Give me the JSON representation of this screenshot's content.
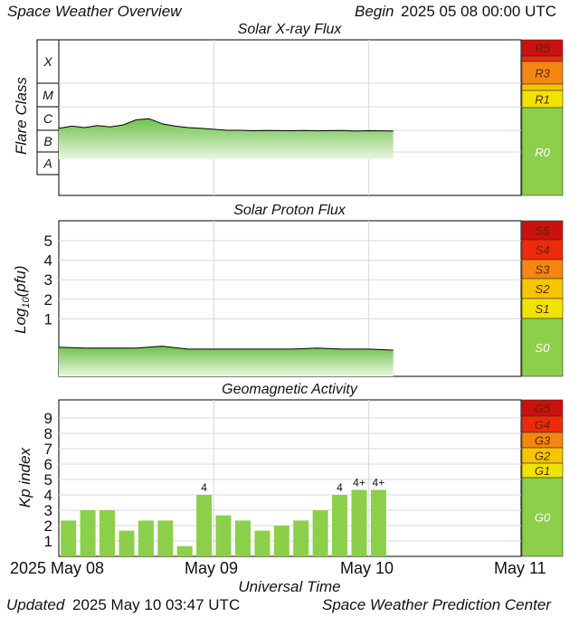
{
  "header": {
    "title": "Space Weather Overview",
    "begin_label": "Begin",
    "begin_date": "2025 05 08 00:00 UTC"
  },
  "footer": {
    "updated_label": "Updated",
    "updated_date": "2025 May 10 03:47 UTC",
    "source": "Space Weather Prediction Center"
  },
  "colors": {
    "level0": "#8ccf4a",
    "level1": "#f2e200",
    "level2": "#f7c500",
    "level3": "#f5860f",
    "level4": "#ee2a0a",
    "level5": "#cc0f0f",
    "series_fill_top": "#6dc24a",
    "series_fill_bottom": "#eaf7e0",
    "bar": "#8ccf4a",
    "grid": "#d8d8d8"
  },
  "chart_data": [
    {
      "type": "area",
      "title": "Solar X-ray Flux",
      "ylabel": "Flare Class",
      "y_scale": "log",
      "flare_classes": [
        "X",
        "M",
        "C",
        "B",
        "A"
      ],
      "scale_levels": [
        {
          "label": "R5",
          "level": 5
        },
        {
          "label": "R3",
          "level": 3
        },
        {
          "label": "R1",
          "level": 1
        },
        {
          "label": "R0",
          "level": 0
        }
      ],
      "series": [
        {
          "x": [
            "2025-05-08 00:00",
            "2025-05-08 02:00",
            "2025-05-08 04:00",
            "2025-05-08 06:00",
            "2025-05-08 08:00",
            "2025-05-08 10:00",
            "2025-05-08 12:00",
            "2025-05-08 14:00",
            "2025-05-08 16:00",
            "2025-05-08 18:00",
            "2025-05-08 20:00",
            "2025-05-08 22:00",
            "2025-05-09 00:00",
            "2025-05-09 02:00",
            "2025-05-09 04:00",
            "2025-05-09 06:00",
            "2025-05-09 08:00",
            "2025-05-09 10:00",
            "2025-05-09 12:00",
            "2025-05-09 14:00",
            "2025-05-09 16:00",
            "2025-05-09 18:00",
            "2025-05-09 20:00",
            "2025-05-09 22:00",
            "2025-05-10 00:00",
            "2025-05-10 02:00",
            "2025-05-10 03:47"
          ],
          "class": [
            "C1.2",
            "C1.5",
            "C1.3",
            "C1.6",
            "C1.4",
            "C1.7",
            "C2.8",
            "C3.1",
            "C1.9",
            "C1.5",
            "C1.3",
            "C1.2",
            "C1.1",
            "C1.0",
            "C1.0",
            "B9.5",
            "B9.8",
            "B9.6",
            "B9.5",
            "B9.8",
            "B9.4",
            "B9.6",
            "B9.7",
            "B9.2",
            "B9.5",
            "B9.4",
            "B9.2"
          ]
        }
      ]
    },
    {
      "type": "area",
      "title": "Solar Proton Flux",
      "ylabel_main": "Log",
      "ylabel_sub": "10",
      "ylabel_tail": "(pfu)",
      "ylim": [
        -1.7,
        6.0
      ],
      "yticks": [
        "5",
        "4",
        "3",
        "2",
        "1"
      ],
      "scale_levels": [
        {
          "label": "S5",
          "level": 5
        },
        {
          "label": "S4",
          "level": 4
        },
        {
          "label": "S3",
          "level": 3
        },
        {
          "label": "S2",
          "level": 2
        },
        {
          "label": "S1",
          "level": 1
        },
        {
          "label": "S0",
          "level": 0
        }
      ],
      "series": [
        {
          "x": [
            "2025-05-08 00:00",
            "2025-05-08 04:00",
            "2025-05-08 08:00",
            "2025-05-08 12:00",
            "2025-05-08 16:00",
            "2025-05-08 20:00",
            "2025-05-09 00:00",
            "2025-05-09 04:00",
            "2025-05-09 08:00",
            "2025-05-09 12:00",
            "2025-05-09 16:00",
            "2025-05-09 20:00",
            "2025-05-10 00:00",
            "2025-05-10 03:47"
          ],
          "y": [
            -0.45,
            -0.5,
            -0.5,
            -0.5,
            -0.4,
            -0.55,
            -0.55,
            -0.55,
            -0.55,
            -0.55,
            -0.5,
            -0.55,
            -0.55,
            -0.6
          ]
        }
      ]
    },
    {
      "type": "bar",
      "title": "Geomagnetic Activity",
      "ylabel": "Kp index",
      "ylim": [
        0,
        9.5
      ],
      "yticks": [
        "9",
        "8",
        "7",
        "6",
        "5",
        "4",
        "3",
        "2",
        "1"
      ],
      "scale_levels": [
        {
          "label": "G5",
          "level": 5
        },
        {
          "label": "G4",
          "level": 4
        },
        {
          "label": "G3",
          "level": 3
        },
        {
          "label": "G2",
          "level": 2
        },
        {
          "label": "G1",
          "level": 1
        },
        {
          "label": "G0",
          "level": 0
        }
      ],
      "categories": [
        "2025-05-08 00:00",
        "2025-05-08 03:00",
        "2025-05-08 06:00",
        "2025-05-08 09:00",
        "2025-05-08 12:00",
        "2025-05-08 15:00",
        "2025-05-08 18:00",
        "2025-05-08 21:00",
        "2025-05-09 00:00",
        "2025-05-09 03:00",
        "2025-05-09 06:00",
        "2025-05-09 09:00",
        "2025-05-09 12:00",
        "2025-05-09 15:00",
        "2025-05-09 18:00",
        "2025-05-09 21:00",
        "2025-05-10 00:00"
      ],
      "values": [
        2.33,
        3.0,
        3.0,
        1.67,
        2.33,
        2.33,
        0.67,
        4.0,
        2.67,
        2.33,
        1.67,
        2.0,
        2.33,
        3.0,
        4.0,
        4.33,
        4.33
      ],
      "bar_labels": [
        "",
        "",
        "",
        "",
        "",
        "",
        "",
        "4",
        "",
        "",
        "",
        "",
        "",
        "",
        "4",
        "4+",
        "4+"
      ],
      "xlabel": "Universal Time",
      "xtick_labels": [
        "2025 May 08",
        "May 09",
        "May 10",
        "May 11"
      ]
    }
  ]
}
